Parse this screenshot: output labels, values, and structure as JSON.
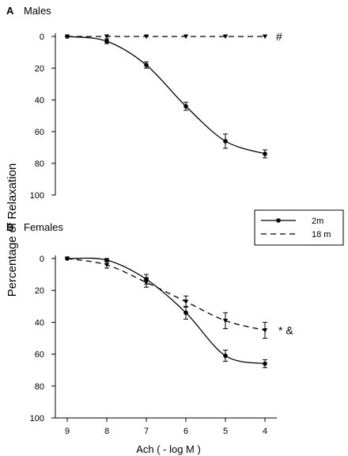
{
  "figure": {
    "ylabel": "Percentage of Relaxation",
    "xlabel": "Ach ( - log M )",
    "legend": {
      "position": "right-middle",
      "entries": [
        "2m",
        "18 m"
      ]
    }
  },
  "chart_data": [
    {
      "type": "line",
      "panel_label": "A",
      "title": "Males",
      "x": [
        9,
        8,
        7,
        6,
        5,
        4
      ],
      "xticks": [
        "9",
        "8",
        "7",
        "6",
        "5",
        "4"
      ],
      "xlim": [
        9.3,
        3.7
      ],
      "ylim": [
        0,
        100
      ],
      "y_inverted": true,
      "yticks": [
        "0",
        "20",
        "40",
        "60",
        "80",
        "100"
      ],
      "series": [
        {
          "name": "2m",
          "style": "solid",
          "marker": "circle",
          "values": [
            0,
            3,
            18,
            44,
            66,
            74
          ],
          "errors": [
            0,
            1.5,
            2,
            2.5,
            4.5,
            2.5
          ]
        },
        {
          "name": "18 m",
          "style": "dashed",
          "marker": "triangle-down",
          "values": [
            0,
            0,
            0,
            0,
            0,
            0
          ],
          "errors": [
            0,
            0,
            0,
            0,
            0,
            0
          ]
        }
      ],
      "annotations": [
        {
          "text": "#",
          "near": "18 m"
        }
      ]
    },
    {
      "type": "line",
      "panel_label": "B",
      "title": "Females",
      "x": [
        9,
        8,
        7,
        6,
        5,
        4
      ],
      "xticks": [
        "9",
        "8",
        "7",
        "6",
        "5",
        "4"
      ],
      "xlim": [
        9.3,
        3.7
      ],
      "ylim": [
        0,
        100
      ],
      "y_inverted": true,
      "yticks": [
        "0",
        "20",
        "40",
        "60",
        "80",
        "100"
      ],
      "series": [
        {
          "name": "2m",
          "style": "solid",
          "marker": "circle",
          "values": [
            0,
            1,
            13,
            34,
            61,
            66
          ],
          "errors": [
            0,
            1,
            3,
            4,
            3.5,
            2.5
          ]
        },
        {
          "name": "18 m",
          "style": "dashed",
          "marker": "triangle-down",
          "values": [
            0,
            4,
            15,
            27,
            39,
            45
          ],
          "errors": [
            0,
            2,
            3,
            3.5,
            5,
            5
          ]
        }
      ],
      "annotations": [
        {
          "text": "* &",
          "near": "18 m"
        }
      ]
    }
  ]
}
